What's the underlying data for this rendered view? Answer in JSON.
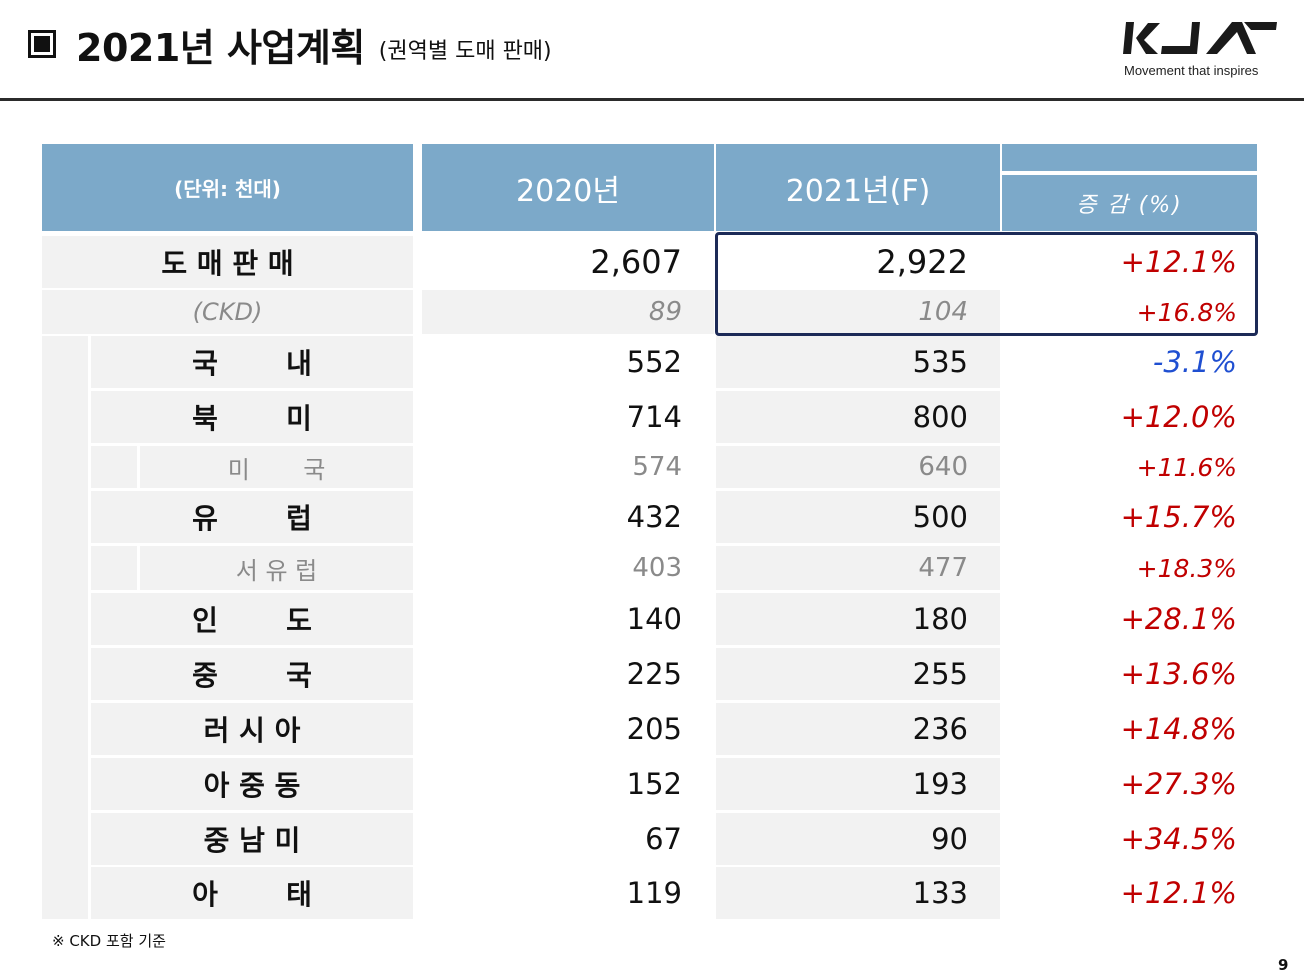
{
  "header": {
    "title": "2021년 사업계획",
    "subtitle": "(권역별 도매 판매)",
    "logo_tagline": "Movement that inspires"
  },
  "table": {
    "col_unit": "(단위: 천대)",
    "col_2020": "2020년",
    "col_2021": "2021년(F)",
    "col_change": "증 감 (%)",
    "rows": [
      {
        "label": "도 매 판 매",
        "v2020": "2,607",
        "v2021": "2,922",
        "change": "+12.1%"
      },
      {
        "label": "(CKD)",
        "v2020": "89",
        "v2021": "104",
        "change": "+16.8%"
      },
      {
        "label": "국       내",
        "v2020": "552",
        "v2021": "535",
        "change": "-3.1%"
      },
      {
        "label": "북       미",
        "v2020": "714",
        "v2021": "800",
        "change": "+12.0%"
      },
      {
        "label": "미       국",
        "v2020": "574",
        "v2021": "640",
        "change": "+11.6%"
      },
      {
        "label": "유       럽",
        "v2020": "432",
        "v2021": "500",
        "change": "+15.7%"
      },
      {
        "label": "서 유 럽",
        "v2020": "403",
        "v2021": "477",
        "change": "+18.3%"
      },
      {
        "label": "인       도",
        "v2020": "140",
        "v2021": "180",
        "change": "+28.1%"
      },
      {
        "label": "중       국",
        "v2020": "225",
        "v2021": "255",
        "change": "+13.6%"
      },
      {
        "label": "러 시 아",
        "v2020": "205",
        "v2021": "236",
        "change": "+14.8%"
      },
      {
        "label": "아 중 동",
        "v2020": "152",
        "v2021": "193",
        "change": "+27.3%"
      },
      {
        "label": "중 남 미",
        "v2020": "67",
        "v2021": "90",
        "change": "+34.5%"
      },
      {
        "label": "아       태",
        "v2020": "119",
        "v2021": "133",
        "change": "+12.1%"
      }
    ]
  },
  "footnote": "※  CKD 포함 기준",
  "page_number": "9",
  "colors": {
    "header_bg": "#7ca9c9",
    "row_bg": "#f2f2f2",
    "positive": "#c00000",
    "negative": "#1f4fd1",
    "highlight_border": "#1c2a57"
  }
}
